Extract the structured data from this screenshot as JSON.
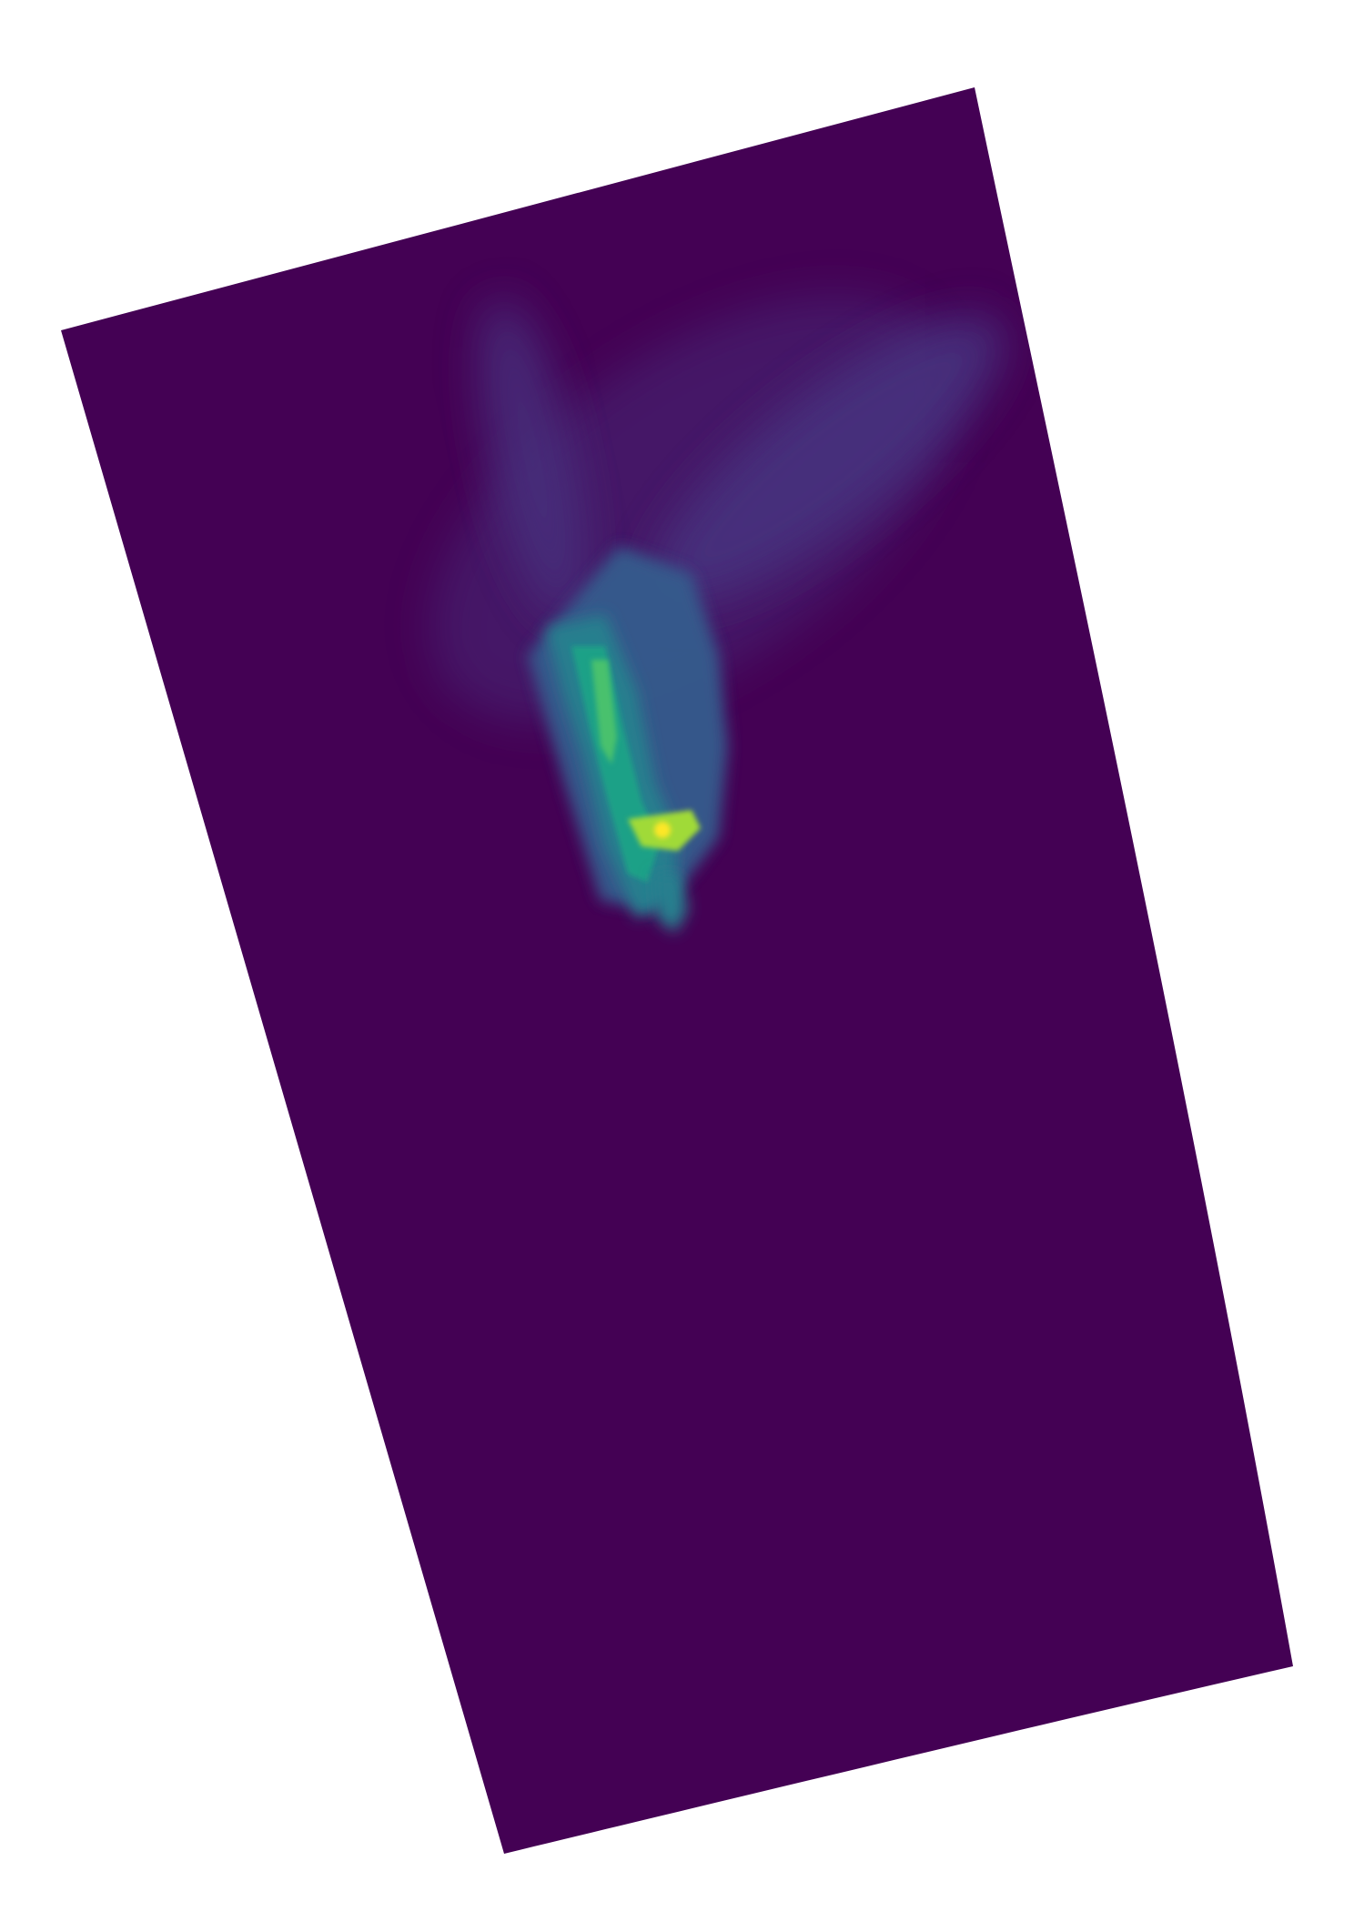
{
  "map": {
    "colormap": "viridis",
    "background_color": "#ffffff",
    "base_color": "#440154",
    "colors": {
      "low": "#440154",
      "low_mid": "#46327e",
      "mid": "#365c8d",
      "mid_high": "#277f8e",
      "high": "#1fa187",
      "higher": "#4ac16d",
      "very_high": "#a0da39",
      "peak": "#fde725"
    },
    "axes_visible": false,
    "labels_visible": false
  }
}
